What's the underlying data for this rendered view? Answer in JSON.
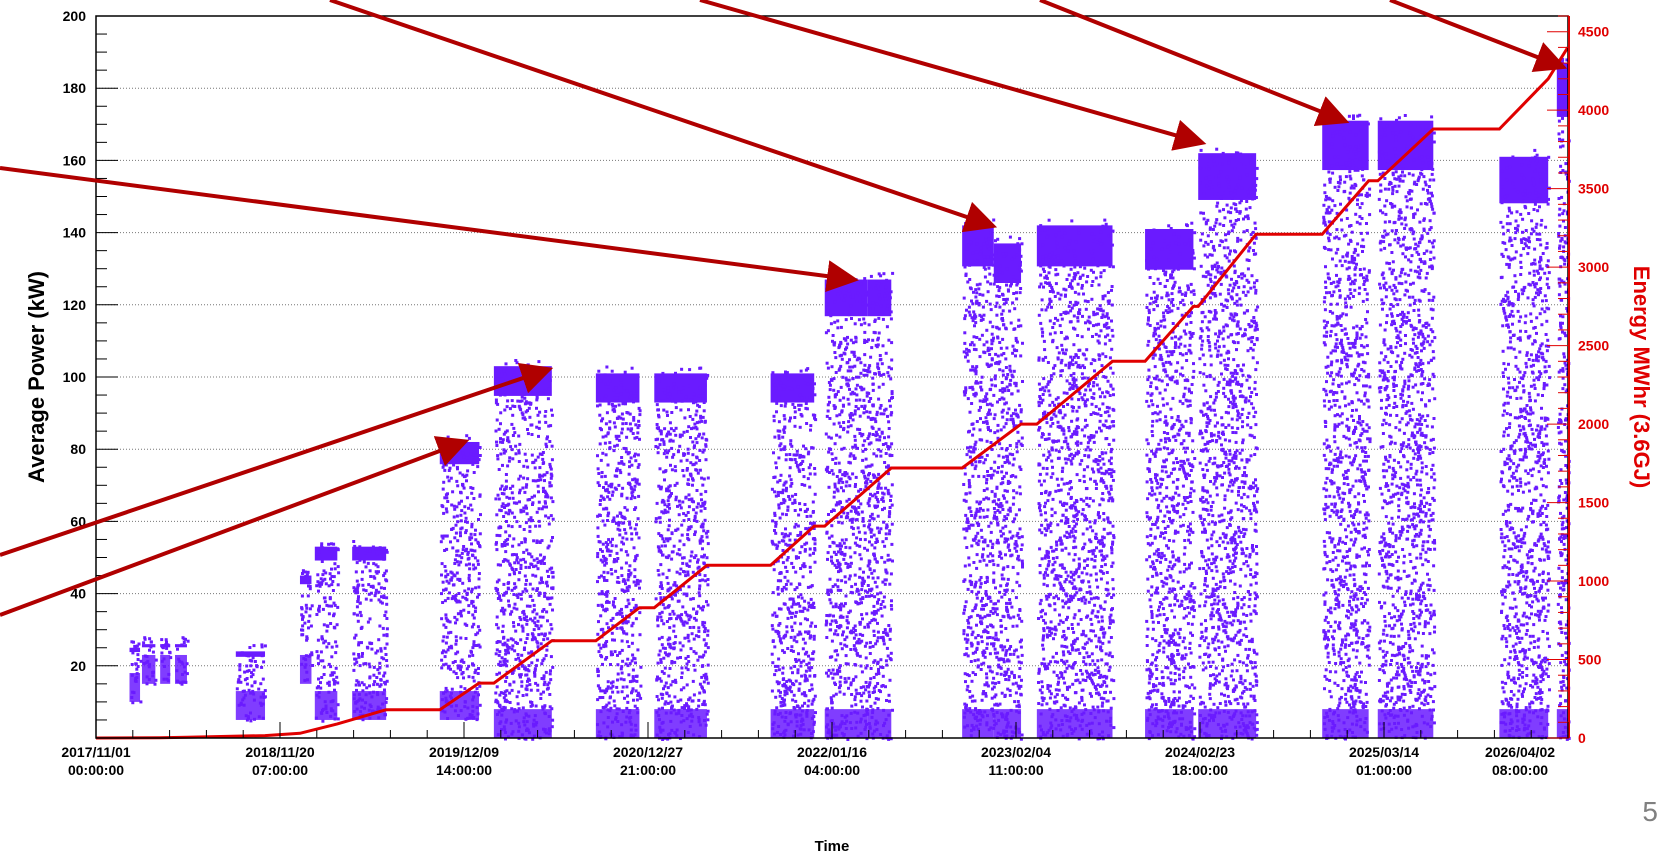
{
  "page_number": "5",
  "colors": {
    "power_points": "#6a1bff",
    "energy_line": "#e00000",
    "arrows": "#b00000",
    "grid": "#777777"
  },
  "chart_data": {
    "type": "scatter",
    "title": "",
    "xlabel": "Time",
    "ylabel": "Average Power (kW)",
    "y2label": "Energy MWhr (3.6GJ)",
    "ylim": [
      0,
      200
    ],
    "y2lim": [
      0,
      4600
    ],
    "grid": "horizontal dotted",
    "x_tick_labels": [
      [
        "2017/11/01",
        "00:00:00"
      ],
      [
        "2018/11/20",
        "07:00:00"
      ],
      [
        "2019/12/09",
        "14:00:00"
      ],
      [
        "2020/12/27",
        "21:00:00"
      ],
      [
        "2022/01/16",
        "04:00:00"
      ],
      [
        "2023/02/04",
        "11:00:00"
      ],
      [
        "2024/02/23",
        "18:00:00"
      ],
      [
        "2025/03/14",
        "01:00:00"
      ],
      [
        "2026/04/02",
        "08:00:00"
      ]
    ],
    "y_ticks": [
      20,
      40,
      60,
      80,
      100,
      120,
      140,
      160,
      180,
      200
    ],
    "y2_ticks": [
      0,
      500,
      1000,
      1500,
      2000,
      2500,
      3000,
      3500,
      4000,
      4500
    ],
    "power_blocks": [
      {
        "start": "2018/01/10",
        "end": "2018/02/01",
        "min": 10,
        "max": 25
      },
      {
        "start": "2018/02/05",
        "end": "2018/03/05",
        "min": 15,
        "max": 26
      },
      {
        "start": "2018/03/15",
        "end": "2018/04/05",
        "min": 15,
        "max": 26
      },
      {
        "start": "2018/04/15",
        "end": "2018/05/10",
        "min": 15,
        "max": 26
      },
      {
        "start": "2018/08/20",
        "end": "2018/10/20",
        "min": 5,
        "max": 24
      },
      {
        "start": "2019/01/01",
        "end": "2019/01/25",
        "min": 15,
        "max": 45
      },
      {
        "start": "2019/02/01",
        "end": "2019/03/20",
        "min": 5,
        "max": 53
      },
      {
        "start": "2019/04/20",
        "end": "2019/06/30",
        "min": 5,
        "max": 53
      },
      {
        "start": "2019/10/20",
        "end": "2020/01/10",
        "min": 5,
        "max": 82
      },
      {
        "start": "2020/02/10",
        "end": "2020/06/10",
        "min": 0,
        "max": 103
      },
      {
        "start": "2020/09/10",
        "end": "2020/12/10",
        "min": 0,
        "max": 101
      },
      {
        "start": "2021/01/10",
        "end": "2021/04/30",
        "min": 0,
        "max": 101
      },
      {
        "start": "2021/09/10",
        "end": "2021/12/10",
        "min": 0,
        "max": 101
      },
      {
        "start": "2022/01/01",
        "end": "2022/04/01",
        "min": 0,
        "max": 127
      },
      {
        "start": "2022/04/01",
        "end": "2022/05/20",
        "min": 0,
        "max": 127
      },
      {
        "start": "2022/10/15",
        "end": "2022/12/20",
        "min": 0,
        "max": 142
      },
      {
        "start": "2022/12/20",
        "end": "2023/02/15",
        "min": 0,
        "max": 137
      },
      {
        "start": "2023/03/20",
        "end": "2023/08/25",
        "min": 0,
        "max": 142
      },
      {
        "start": "2023/11/01",
        "end": "2024/02/10",
        "min": 0,
        "max": 141
      },
      {
        "start": "2024/02/20",
        "end": "2024/06/20",
        "min": 0,
        "max": 162
      },
      {
        "start": "2024/11/05",
        "end": "2025/02/10",
        "min": 0,
        "max": 171
      },
      {
        "start": "2025/03/01",
        "end": "2025/06/25",
        "min": 0,
        "max": 171
      },
      {
        "start": "2025/11/10",
        "end": "2026/02/20",
        "min": 0,
        "max": 161
      },
      {
        "start": "2026/03/10",
        "end": "2026/04/02",
        "min": 0,
        "max": 187
      }
    ],
    "energy_series": {
      "name": "Energy",
      "points": [
        [
          "2017/11/01",
          0
        ],
        [
          "2018/03/15",
          2
        ],
        [
          "2018/05/10",
          5
        ],
        [
          "2018/10/20",
          15
        ],
        [
          "2019/01/01",
          30
        ],
        [
          "2019/03/20",
          90
        ],
        [
          "2019/06/30",
          180
        ],
        [
          "2019/10/20",
          180
        ],
        [
          "2020/01/10",
          350
        ],
        [
          "2020/02/10",
          350
        ],
        [
          "2020/06/10",
          620
        ],
        [
          "2020/09/10",
          620
        ],
        [
          "2020/12/10",
          830
        ],
        [
          "2021/01/10",
          830
        ],
        [
          "2021/04/30",
          1100
        ],
        [
          "2021/09/10",
          1100
        ],
        [
          "2021/12/10",
          1350
        ],
        [
          "2022/01/01",
          1350
        ],
        [
          "2022/05/20",
          1720
        ],
        [
          "2022/10/15",
          1720
        ],
        [
          "2023/02/15",
          2000
        ],
        [
          "2023/03/20",
          2000
        ],
        [
          "2023/08/25",
          2400
        ],
        [
          "2023/11/01",
          2400
        ],
        [
          "2024/02/10",
          2750
        ],
        [
          "2024/02/20",
          2750
        ],
        [
          "2024/06/20",
          3210
        ],
        [
          "2024/11/05",
          3210
        ],
        [
          "2025/02/10",
          3550
        ],
        [
          "2025/03/01",
          3550
        ],
        [
          "2025/06/25",
          3880
        ],
        [
          "2025/11/10",
          3880
        ],
        [
          "2026/02/20",
          4200
        ],
        [
          "2026/04/02",
          4400
        ]
      ]
    },
    "arrows": [
      {
        "to_date": "2019/12/09",
        "to_y": 82
      },
      {
        "to_date": "2020/06/01",
        "to_y": 102
      },
      {
        "to_date": "2022/03/01",
        "to_y": 127
      },
      {
        "to_date": "2022/12/15",
        "to_y": 142
      },
      {
        "to_date": "2024/02/25",
        "to_y": 165
      },
      {
        "to_date": "2024/12/20",
        "to_y": 171
      },
      {
        "to_date": "2026/03/20",
        "to_y": 186
      }
    ]
  }
}
